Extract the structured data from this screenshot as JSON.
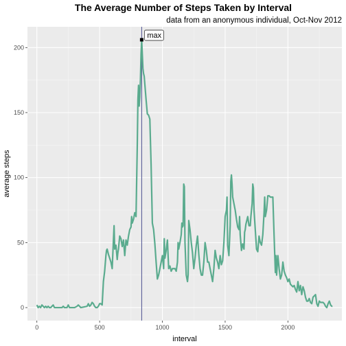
{
  "chart_data": {
    "type": "line",
    "title": "The Average Number of Steps Taken by Interval",
    "subtitle": "data from an anonymous individual, Oct-Nov 2012",
    "xlabel": "interval",
    "ylabel": "average steps",
    "xlim": [
      -75,
      2430
    ],
    "ylim": [
      -10,
      216
    ],
    "xticks": [
      0,
      500,
      1000,
      1500,
      2000
    ],
    "yticks": [
      0,
      50,
      100,
      150,
      200
    ],
    "grid": true,
    "line_color": "#5aab8e",
    "vline_color": "#4a4f8f",
    "annotation": {
      "label": "max",
      "x": 835,
      "y": 206
    },
    "series": [
      {
        "points": [
          [
            0,
            2
          ],
          [
            10,
            0
          ],
          [
            20,
            1
          ],
          [
            30,
            0
          ],
          [
            40,
            2
          ],
          [
            50,
            1
          ],
          [
            60,
            0
          ],
          [
            70,
            1
          ],
          [
            80,
            0
          ],
          [
            90,
            1
          ],
          [
            100,
            0
          ],
          [
            110,
            0
          ],
          [
            120,
            1
          ],
          [
            130,
            2
          ],
          [
            140,
            0
          ],
          [
            150,
            0
          ],
          [
            200,
            0
          ],
          [
            210,
            1
          ],
          [
            220,
            0
          ],
          [
            230,
            0
          ],
          [
            240,
            0
          ],
          [
            250,
            2
          ],
          [
            260,
            0
          ],
          [
            270,
            0
          ],
          [
            280,
            0
          ],
          [
            290,
            0
          ],
          [
            300,
            0
          ],
          [
            320,
            1
          ],
          [
            330,
            2
          ],
          [
            340,
            1
          ],
          [
            350,
            0
          ],
          [
            400,
            1
          ],
          [
            410,
            3
          ],
          [
            420,
            1
          ],
          [
            430,
            2
          ],
          [
            440,
            4
          ],
          [
            450,
            3
          ],
          [
            460,
            1
          ],
          [
            470,
            0
          ],
          [
            480,
            0
          ],
          [
            490,
            1
          ],
          [
            500,
            3
          ],
          [
            510,
            3
          ],
          [
            520,
            2
          ],
          [
            530,
            20
          ],
          [
            540,
            28
          ],
          [
            550,
            40
          ],
          [
            555,
            44
          ],
          [
            560,
            45
          ],
          [
            570,
            41
          ],
          [
            580,
            38
          ],
          [
            590,
            35
          ],
          [
            600,
            30
          ],
          [
            610,
            52
          ],
          [
            615,
            63
          ],
          [
            620,
            45
          ],
          [
            630,
            48
          ],
          [
            640,
            37
          ],
          [
            645,
            42
          ],
          [
            650,
            45
          ],
          [
            660,
            55
          ],
          [
            670,
            53
          ],
          [
            680,
            47
          ],
          [
            690,
            52
          ],
          [
            700,
            40
          ],
          [
            710,
            52
          ],
          [
            720,
            48
          ],
          [
            730,
            55
          ],
          [
            740,
            60
          ],
          [
            750,
            62
          ],
          [
            755,
            70
          ],
          [
            760,
            65
          ],
          [
            770,
            68
          ],
          [
            780,
            73
          ],
          [
            790,
            70
          ],
          [
            800,
            125
          ],
          [
            805,
            160
          ],
          [
            810,
            171
          ],
          [
            815,
            155
          ],
          [
            820,
            162
          ],
          [
            825,
            175
          ],
          [
            830,
            195
          ],
          [
            835,
            206
          ],
          [
            840,
            195
          ],
          [
            845,
            184
          ],
          [
            850,
            180
          ],
          [
            855,
            178
          ],
          [
            860,
            172
          ],
          [
            870,
            160
          ],
          [
            880,
            149
          ],
          [
            890,
            148
          ],
          [
            900,
            145
          ],
          [
            910,
            110
          ],
          [
            920,
            65
          ],
          [
            930,
            60
          ],
          [
            940,
            49
          ],
          [
            950,
            35
          ],
          [
            960,
            22
          ],
          [
            970,
            25
          ],
          [
            980,
            30
          ],
          [
            990,
            35
          ],
          [
            1000,
            40
          ],
          [
            1010,
            30
          ],
          [
            1015,
            53
          ],
          [
            1020,
            38
          ],
          [
            1030,
            44
          ],
          [
            1040,
            52
          ],
          [
            1050,
            30
          ],
          [
            1060,
            32
          ],
          [
            1070,
            28
          ],
          [
            1080,
            30
          ],
          [
            1090,
            30
          ],
          [
            1100,
            30
          ],
          [
            1110,
            28
          ],
          [
            1120,
            35
          ],
          [
            1125,
            50
          ],
          [
            1130,
            45
          ],
          [
            1140,
            50
          ],
          [
            1150,
            56
          ],
          [
            1155,
            65
          ],
          [
            1160,
            62
          ],
          [
            1165,
            63
          ],
          [
            1170,
            95
          ],
          [
            1175,
            93
          ],
          [
            1180,
            50
          ],
          [
            1190,
            25
          ],
          [
            1200,
            20
          ],
          [
            1205,
            25
          ],
          [
            1210,
            67
          ],
          [
            1220,
            60
          ],
          [
            1230,
            50
          ],
          [
            1240,
            42
          ],
          [
            1250,
            30
          ],
          [
            1260,
            38
          ],
          [
            1270,
            48
          ],
          [
            1280,
            55
          ],
          [
            1290,
            41
          ],
          [
            1300,
            30
          ],
          [
            1310,
            25
          ],
          [
            1320,
            25
          ],
          [
            1330,
            35
          ],
          [
            1340,
            50
          ],
          [
            1350,
            44
          ],
          [
            1360,
            35
          ],
          [
            1370,
            35
          ],
          [
            1380,
            30
          ],
          [
            1390,
            25
          ],
          [
            1400,
            20
          ],
          [
            1410,
            30
          ],
          [
            1420,
            44
          ],
          [
            1430,
            38
          ],
          [
            1440,
            35
          ],
          [
            1450,
            30
          ],
          [
            1460,
            40
          ],
          [
            1470,
            33
          ],
          [
            1480,
            36
          ],
          [
            1490,
            50
          ],
          [
            1500,
            70
          ],
          [
            1510,
            75
          ],
          [
            1515,
            85
          ],
          [
            1520,
            48
          ],
          [
            1530,
            40
          ],
          [
            1540,
            63
          ],
          [
            1545,
            97
          ],
          [
            1550,
            102
          ],
          [
            1555,
            95
          ],
          [
            1560,
            85
          ],
          [
            1570,
            80
          ],
          [
            1580,
            75
          ],
          [
            1590,
            68
          ],
          [
            1600,
            62
          ],
          [
            1610,
            60
          ],
          [
            1615,
            70
          ],
          [
            1620,
            56
          ],
          [
            1630,
            44
          ],
          [
            1640,
            49
          ],
          [
            1650,
            45
          ],
          [
            1655,
            58
          ],
          [
            1660,
            60
          ],
          [
            1665,
            64
          ],
          [
            1670,
            66
          ],
          [
            1680,
            70
          ],
          [
            1690,
            63
          ],
          [
            1700,
            63
          ],
          [
            1705,
            70
          ],
          [
            1710,
            75
          ],
          [
            1715,
            80
          ],
          [
            1720,
            95
          ],
          [
            1725,
            92
          ],
          [
            1730,
            75
          ],
          [
            1740,
            60
          ],
          [
            1750,
            45
          ],
          [
            1760,
            43
          ],
          [
            1770,
            55
          ],
          [
            1780,
            50
          ],
          [
            1790,
            48
          ],
          [
            1800,
            56
          ],
          [
            1810,
            73
          ],
          [
            1815,
            85
          ],
          [
            1820,
            70
          ],
          [
            1830,
            75
          ],
          [
            1840,
            86
          ],
          [
            1850,
            86
          ],
          [
            1860,
            85
          ],
          [
            1870,
            85
          ],
          [
            1880,
            85
          ],
          [
            1890,
            55
          ],
          [
            1900,
            27
          ],
          [
            1905,
            40
          ],
          [
            1910,
            25
          ],
          [
            1920,
            40
          ],
          [
            1930,
            30
          ],
          [
            1940,
            22
          ],
          [
            1950,
            25
          ],
          [
            1960,
            35
          ],
          [
            1970,
            28
          ],
          [
            1980,
            25
          ],
          [
            1990,
            23
          ],
          [
            2000,
            20
          ],
          [
            2010,
            22
          ],
          [
            2020,
            18
          ],
          [
            2030,
            17
          ],
          [
            2040,
            16
          ],
          [
            2050,
            17
          ],
          [
            2060,
            14
          ],
          [
            2070,
            12
          ],
          [
            2080,
            20
          ],
          [
            2090,
            13
          ],
          [
            2100,
            17
          ],
          [
            2110,
            10
          ],
          [
            2120,
            16
          ],
          [
            2130,
            13
          ],
          [
            2140,
            8
          ],
          [
            2150,
            5
          ],
          [
            2160,
            5
          ],
          [
            2170,
            7
          ],
          [
            2180,
            4
          ],
          [
            2190,
            3
          ],
          [
            2200,
            8
          ],
          [
            2210,
            9
          ],
          [
            2220,
            10
          ],
          [
            2230,
            3
          ],
          [
            2240,
            1
          ],
          [
            2250,
            5
          ],
          [
            2260,
            4
          ],
          [
            2270,
            4
          ],
          [
            2280,
            4
          ],
          [
            2290,
            3
          ],
          [
            2300,
            1
          ],
          [
            2310,
            0
          ],
          [
            2320,
            3
          ],
          [
            2330,
            5
          ],
          [
            2340,
            2
          ],
          [
            2350,
            1
          ],
          [
            2355,
            1
          ]
        ]
      }
    ]
  }
}
